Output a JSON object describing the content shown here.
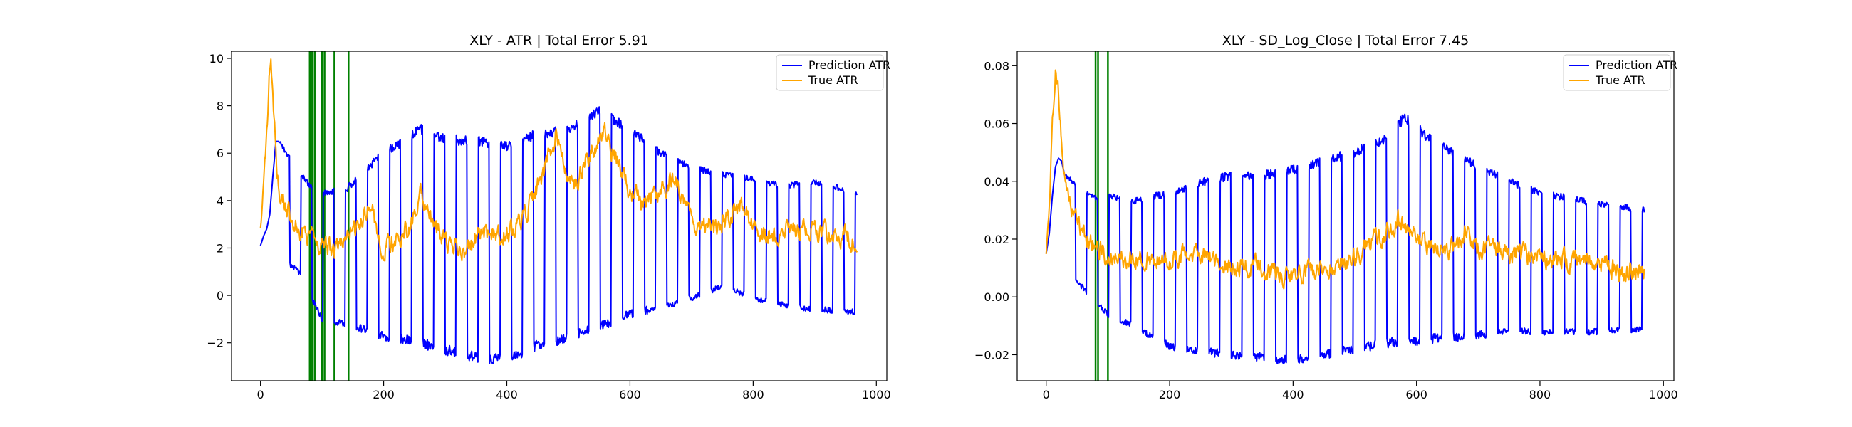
{
  "chart_data": [
    {
      "type": "line",
      "title": "XLY - ATR | Total Error 5.91",
      "xlabel": "",
      "ylabel": "",
      "xlim": [
        -47,
        1017
      ],
      "ylim": [
        -3.6,
        10.3
      ],
      "xticks": [
        0,
        200,
        400,
        600,
        800,
        1000
      ],
      "yticks": [
        -2,
        0,
        2,
        4,
        6,
        8,
        10
      ],
      "legend": "top-right",
      "grid": false,
      "n_points": 970,
      "vertical_lines": [
        80,
        84,
        88,
        100,
        104,
        120,
        143
      ],
      "vertical_line_color": "#008000",
      "series": [
        {
          "name": "Prediction ATR",
          "color": "#0000ff",
          "pattern": "square-wave",
          "start_x": 30,
          "period": 18,
          "knots": [
            [
              0,
              2.1
            ],
            [
              5,
              2.5
            ],
            [
              10,
              2.8
            ],
            [
              15,
              3.4
            ],
            [
              20,
              5.0
            ],
            [
              25,
              6.5
            ],
            [
              30,
              6.5
            ],
            [
              35,
              6.4
            ]
          ],
          "upper_envelope": [
            [
              30,
              6.5
            ],
            [
              80,
              4.6
            ],
            [
              100,
              4.3
            ],
            [
              140,
              4.5
            ],
            [
              190,
              5.8
            ],
            [
              260,
              7.0
            ],
            [
              300,
              6.6
            ],
            [
              350,
              6.5
            ],
            [
              400,
              6.3
            ],
            [
              450,
              6.8
            ],
            [
              500,
              7.0
            ],
            [
              550,
              7.8
            ],
            [
              600,
              7.0
            ],
            [
              650,
              6.0
            ],
            [
              700,
              5.4
            ],
            [
              750,
              5.1
            ],
            [
              800,
              4.9
            ],
            [
              850,
              4.6
            ],
            [
              900,
              4.8
            ],
            [
              970,
              4.3
            ]
          ],
          "lower_envelope": [
            [
              30,
              1.5
            ],
            [
              60,
              1.1
            ],
            [
              100,
              -1.0
            ],
            [
              140,
              -1.2
            ],
            [
              200,
              -1.7
            ],
            [
              260,
              -2.0
            ],
            [
              300,
              -2.3
            ],
            [
              350,
              -2.6
            ],
            [
              400,
              -2.7
            ],
            [
              450,
              -2.1
            ],
            [
              500,
              -1.8
            ],
            [
              550,
              -1.3
            ],
            [
              600,
              -0.8
            ],
            [
              650,
              -0.5
            ],
            [
              700,
              -0.1
            ],
            [
              750,
              0.4
            ],
            [
              800,
              -0.1
            ],
            [
              850,
              -0.4
            ],
            [
              900,
              -0.6
            ],
            [
              970,
              -0.7
            ]
          ]
        },
        {
          "name": "True ATR",
          "color": "#ffa500",
          "pattern": "noisy",
          "noise": 0.45,
          "knots": [
            [
              0,
              2.9
            ],
            [
              5,
              4.6
            ],
            [
              10,
              6.8
            ],
            [
              14,
              8.9
            ],
            [
              17,
              9.7
            ],
            [
              20,
              8.8
            ],
            [
              25,
              6.0
            ],
            [
              30,
              4.4
            ],
            [
              40,
              3.8
            ],
            [
              60,
              2.8
            ],
            [
              80,
              2.5
            ],
            [
              100,
              2.2
            ],
            [
              120,
              1.8
            ],
            [
              140,
              2.6
            ],
            [
              160,
              3.0
            ],
            [
              180,
              3.6
            ],
            [
              200,
              2.0
            ],
            [
              240,
              2.8
            ],
            [
              260,
              4.3
            ],
            [
              280,
              3.0
            ],
            [
              300,
              2.4
            ],
            [
              330,
              1.8
            ],
            [
              360,
              2.6
            ],
            [
              400,
              2.5
            ],
            [
              420,
              3.1
            ],
            [
              440,
              4.0
            ],
            [
              460,
              5.2
            ],
            [
              480,
              6.8
            ],
            [
              495,
              5.6
            ],
            [
              510,
              4.8
            ],
            [
              530,
              5.8
            ],
            [
              545,
              6.3
            ],
            [
              560,
              7.0
            ],
            [
              575,
              5.8
            ],
            [
              600,
              4.5
            ],
            [
              620,
              3.8
            ],
            [
              650,
              4.5
            ],
            [
              670,
              5.0
            ],
            [
              700,
              3.0
            ],
            [
              740,
              2.8
            ],
            [
              780,
              3.8
            ],
            [
              800,
              2.9
            ],
            [
              820,
              2.5
            ],
            [
              860,
              2.8
            ],
            [
              900,
              2.7
            ],
            [
              940,
              2.5
            ],
            [
              970,
              2.2
            ]
          ]
        }
      ]
    },
    {
      "type": "line",
      "title": "XLY - SD_Log_Close | Total Error 7.45",
      "xlabel": "",
      "ylabel": "",
      "xlim": [
        -47,
        1017
      ],
      "ylim": [
        -0.029,
        0.085
      ],
      "xticks": [
        0,
        200,
        400,
        600,
        800,
        1000
      ],
      "yticks": [
        -0.02,
        0.0,
        0.02,
        0.04,
        0.06,
        0.08
      ],
      "legend": "top-right",
      "grid": false,
      "n_points": 970,
      "vertical_lines": [
        80,
        84,
        100
      ],
      "vertical_line_color": "#008000",
      "series": [
        {
          "name": "Prediction ATR",
          "color": "#0000ff",
          "pattern": "square-wave",
          "start_x": 30,
          "period": 18,
          "knots": [
            [
              0,
              0.015
            ],
            [
              5,
              0.022
            ],
            [
              10,
              0.035
            ],
            [
              15,
              0.045
            ],
            [
              20,
              0.048
            ],
            [
              25,
              0.047
            ],
            [
              30,
              0.042
            ],
            [
              35,
              0.04
            ]
          ],
          "upper_envelope": [
            [
              30,
              0.042
            ],
            [
              80,
              0.034
            ],
            [
              100,
              0.035
            ],
            [
              140,
              0.033
            ],
            [
              200,
              0.036
            ],
            [
              260,
              0.04
            ],
            [
              300,
              0.042
            ],
            [
              350,
              0.042
            ],
            [
              400,
              0.044
            ],
            [
              450,
              0.047
            ],
            [
              500,
              0.05
            ],
            [
              550,
              0.055
            ],
            [
              580,
              0.062
            ],
            [
              620,
              0.055
            ],
            [
              660,
              0.05
            ],
            [
              700,
              0.045
            ],
            [
              750,
              0.04
            ],
            [
              800,
              0.036
            ],
            [
              850,
              0.034
            ],
            [
              900,
              0.032
            ],
            [
              970,
              0.03
            ]
          ],
          "lower_envelope": [
            [
              30,
              0.01
            ],
            [
              60,
              0.003
            ],
            [
              100,
              -0.006
            ],
            [
              140,
              -0.01
            ],
            [
              200,
              -0.017
            ],
            [
              260,
              -0.019
            ],
            [
              300,
              -0.02
            ],
            [
              350,
              -0.021
            ],
            [
              400,
              -0.022
            ],
            [
              450,
              -0.02
            ],
            [
              500,
              -0.018
            ],
            [
              550,
              -0.016
            ],
            [
              600,
              -0.015
            ],
            [
              650,
              -0.014
            ],
            [
              700,
              -0.013
            ],
            [
              750,
              -0.012
            ],
            [
              800,
              -0.012
            ],
            [
              850,
              -0.012
            ],
            [
              900,
              -0.012
            ],
            [
              970,
              -0.011
            ]
          ]
        },
        {
          "name": "True ATR",
          "color": "#ffa500",
          "pattern": "noisy",
          "noise": 0.0035,
          "knots": [
            [
              0,
              0.015
            ],
            [
              5,
              0.03
            ],
            [
              10,
              0.06
            ],
            [
              15,
              0.08
            ],
            [
              20,
              0.072
            ],
            [
              25,
              0.055
            ],
            [
              30,
              0.04
            ],
            [
              40,
              0.03
            ],
            [
              60,
              0.022
            ],
            [
              80,
              0.018
            ],
            [
              100,
              0.014
            ],
            [
              140,
              0.013
            ],
            [
              200,
              0.013
            ],
            [
              240,
              0.016
            ],
            [
              260,
              0.015
            ],
            [
              300,
              0.01
            ],
            [
              340,
              0.011
            ],
            [
              380,
              0.008
            ],
            [
              420,
              0.008
            ],
            [
              460,
              0.01
            ],
            [
              500,
              0.014
            ],
            [
              520,
              0.018
            ],
            [
              550,
              0.022
            ],
            [
              570,
              0.027
            ],
            [
              590,
              0.022
            ],
            [
              620,
              0.018
            ],
            [
              650,
              0.016
            ],
            [
              680,
              0.022
            ],
            [
              700,
              0.017
            ],
            [
              750,
              0.015
            ],
            [
              800,
              0.014
            ],
            [
              850,
              0.012
            ],
            [
              900,
              0.012
            ],
            [
              940,
              0.008
            ],
            [
              970,
              0.01
            ]
          ]
        }
      ]
    }
  ]
}
